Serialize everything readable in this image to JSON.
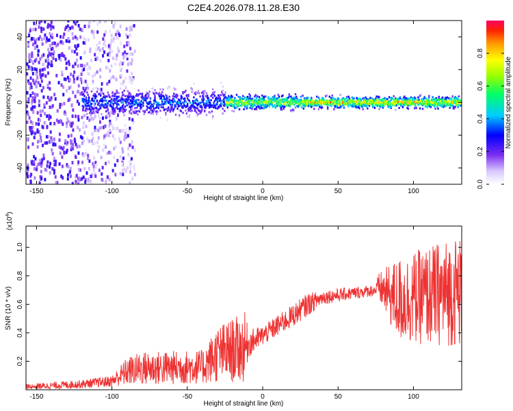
{
  "title": "C2E4.2026.078.11.28.E30",
  "chart_data": [
    {
      "type": "heatmap",
      "xlabel": "Height of straight line (km)",
      "ylabel": "Frequency (Hz)",
      "xlim": [
        -157,
        132
      ],
      "ylim": [
        -50,
        50
      ],
      "xticks": [
        -150,
        -100,
        -50,
        0,
        50,
        100
      ],
      "yticks": [
        -40,
        -20,
        0,
        20,
        40
      ],
      "colorbar": {
        "label": "Normalized spectral amplitude",
        "range": [
          0,
          1
        ],
        "ticks": [
          0.0,
          0.2,
          0.4,
          0.6,
          0.8
        ]
      },
      "ridge": {
        "center_freq_hz": 0,
        "segments": [
          {
            "x_from": -120,
            "x_to": -25,
            "half_width_hz": 9,
            "peak_amplitude": 0.45
          },
          {
            "x_from": -25,
            "x_to": 30,
            "half_width_hz": 5,
            "peak_amplitude": 0.85
          },
          {
            "x_from": 30,
            "x_to": 132,
            "half_width_hz": 4,
            "peak_amplitude": 0.95
          }
        ],
        "noise_region": {
          "x_from": -157,
          "x_to": -100,
          "freq_span_hz": [
            -50,
            50
          ],
          "amplitude_range": [
            0.1,
            0.3
          ]
        }
      }
    },
    {
      "type": "line",
      "xlabel": "Height of straight line (km)",
      "ylabel": "SNR (10 * v/v)",
      "y_scale_label": "(x10",
      "y_scale_exp": "4",
      "xlim": [
        -157,
        132
      ],
      "ylim": [
        0,
        1.15
      ],
      "xticks": [
        -150,
        -100,
        -50,
        0,
        50,
        100
      ],
      "yticks": [
        0.2,
        0.4,
        0.6,
        0.8,
        1.0
      ],
      "series": [
        {
          "name": "SNR",
          "color": "#ee3333",
          "envelope": [
            {
              "x": -157,
              "mean": 0.02,
              "spread": 0.02
            },
            {
              "x": -120,
              "mean": 0.04,
              "spread": 0.03
            },
            {
              "x": -100,
              "mean": 0.06,
              "spread": 0.04
            },
            {
              "x": -90,
              "mean": 0.13,
              "spread": 0.1
            },
            {
              "x": -80,
              "mean": 0.15,
              "spread": 0.12
            },
            {
              "x": -40,
              "mean": 0.16,
              "spread": 0.12
            },
            {
              "x": -30,
              "mean": 0.25,
              "spread": 0.2
            },
            {
              "x": -11,
              "mean": 0.3,
              "spread": 0.25
            },
            {
              "x": -10,
              "mean": 0.32,
              "spread": 0.1
            },
            {
              "x": 0,
              "mean": 0.38,
              "spread": 0.07
            },
            {
              "x": 20,
              "mean": 0.52,
              "spread": 0.08
            },
            {
              "x": 30,
              "mean": 0.6,
              "spread": 0.08
            },
            {
              "x": 40,
              "mean": 0.65,
              "spread": 0.05
            },
            {
              "x": 75,
              "mean": 0.7,
              "spread": 0.04
            },
            {
              "x": 77,
              "mean": 0.72,
              "spread": 0.1
            },
            {
              "x": 90,
              "mean": 0.63,
              "spread": 0.3
            },
            {
              "x": 110,
              "mean": 0.66,
              "spread": 0.35
            },
            {
              "x": 132,
              "mean": 0.7,
              "spread": 0.4
            }
          ]
        }
      ]
    }
  ]
}
